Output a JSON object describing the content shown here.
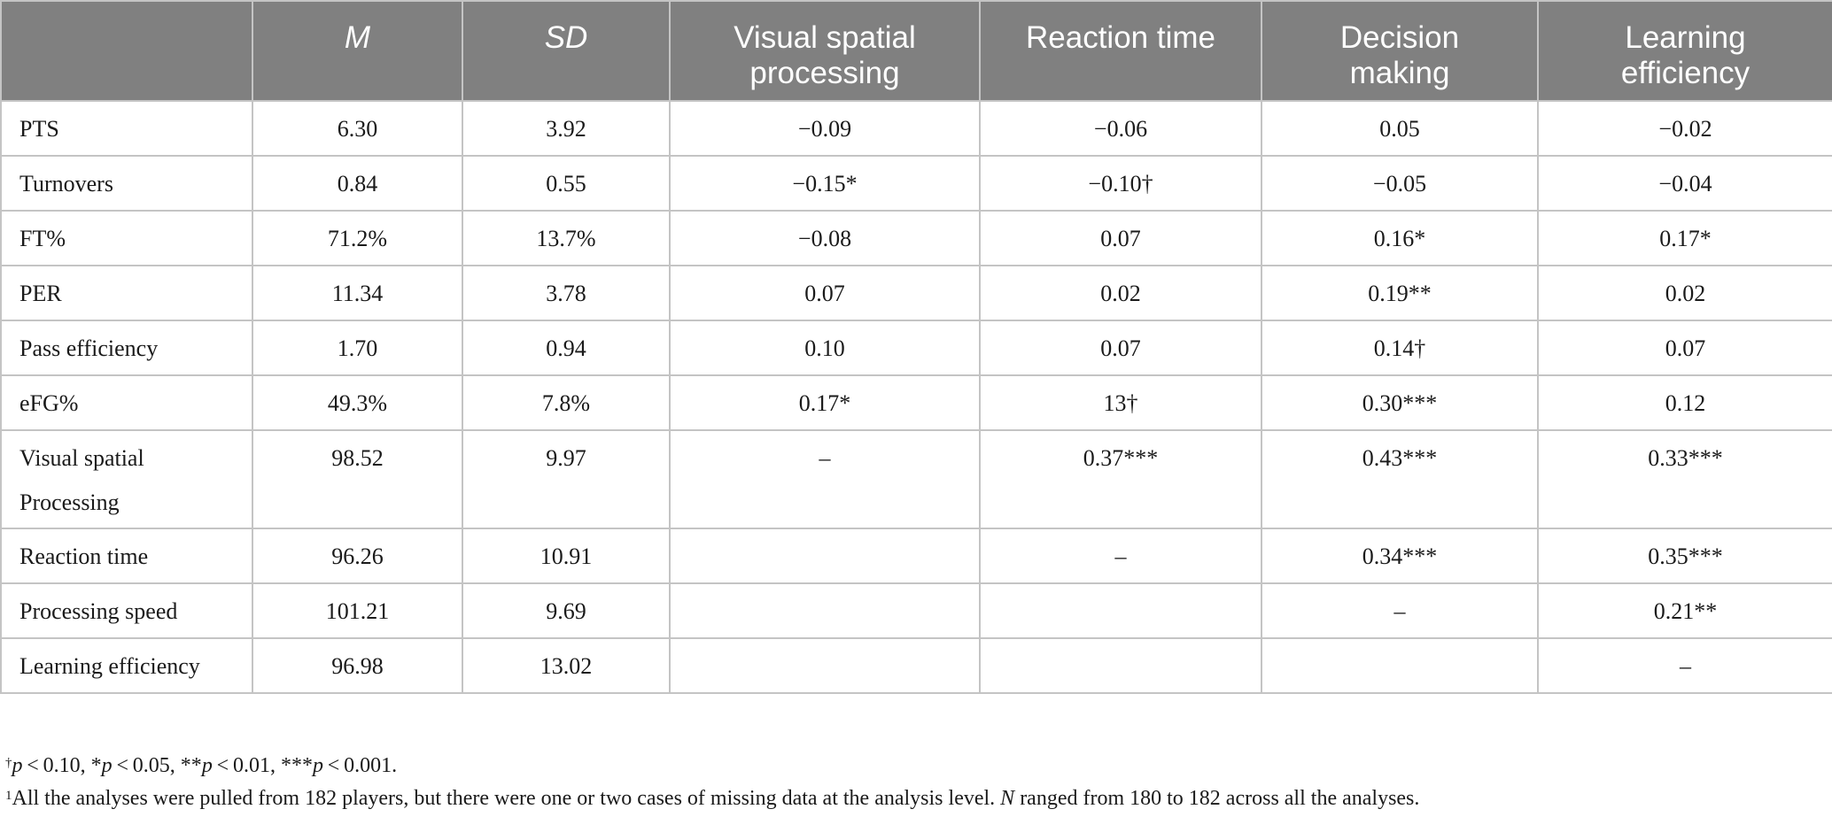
{
  "table": {
    "headers": [
      "",
      "M",
      "SD",
      "Visual spatial processing",
      "Reaction time",
      "Decision making",
      "Learning efficiency"
    ],
    "header_lines": [
      [
        ""
      ],
      [
        "M"
      ],
      [
        "SD"
      ],
      [
        "Visual spatial",
        "processing"
      ],
      [
        "Reaction time"
      ],
      [
        "Decision",
        "making"
      ],
      [
        "Learning",
        "efficiency"
      ]
    ],
    "rows": [
      {
        "label": [
          "PTS"
        ],
        "cells": [
          "6.30",
          "3.92",
          "−0.09",
          "−0.06",
          "0.05",
          "−0.02"
        ]
      },
      {
        "label": [
          "Turnovers"
        ],
        "cells": [
          "0.84",
          "0.55",
          "−0.15*",
          "−0.10†",
          "−0.05",
          "−0.04"
        ]
      },
      {
        "label": [
          "FT%"
        ],
        "cells": [
          "71.2%",
          "13.7%",
          "−0.08",
          "0.07",
          "0.16*",
          "0.17*"
        ]
      },
      {
        "label": [
          "PER"
        ],
        "cells": [
          "11.34",
          "3.78",
          "0.07",
          "0.02",
          "0.19**",
          "0.02"
        ]
      },
      {
        "label": [
          "Pass efficiency"
        ],
        "cells": [
          "1.70",
          "0.94",
          "0.10",
          "0.07",
          "0.14†",
          "0.07"
        ]
      },
      {
        "label": [
          "eFG%"
        ],
        "cells": [
          "49.3%",
          "7.8%",
          "0.17*",
          "13†",
          "0.30***",
          "0.12"
        ]
      },
      {
        "label": [
          "Visual spatial",
          "Processing"
        ],
        "cells": [
          "98.52",
          "9.97",
          "–",
          "0.37***",
          "0.43***",
          "0.33***"
        ]
      },
      {
        "label": [
          "Reaction time"
        ],
        "cells": [
          "96.26",
          "10.91",
          "",
          "–",
          "0.34***",
          "0.35***"
        ]
      },
      {
        "label": [
          "Processing speed"
        ],
        "cells": [
          "101.21",
          "9.69",
          "",
          "",
          "–",
          "0.21**"
        ]
      },
      {
        "label": [
          "Learning efficiency"
        ],
        "cells": [
          "96.98",
          "13.02",
          "",
          "",
          "",
          "–"
        ]
      }
    ]
  },
  "footnotes": {
    "significance": {
      "dagger": "†",
      "dagger_text": "p < 0.10, *",
      "p1": "p",
      "t1": " < 0.05, **",
      "p2": "p",
      "t2": " < 0.01, ***",
      "p3": "p",
      "t3": " < 0.001.",
      "p0": "p",
      "t0": " < 0.10, *"
    },
    "note": {
      "marker": "1",
      "text_before": "All the analyses were pulled from 182 players, but there were one or two cases of missing data at the analysis level. ",
      "n_symbol": "N",
      "text_after": " ranged from 180 to 182 across all the analyses."
    }
  }
}
